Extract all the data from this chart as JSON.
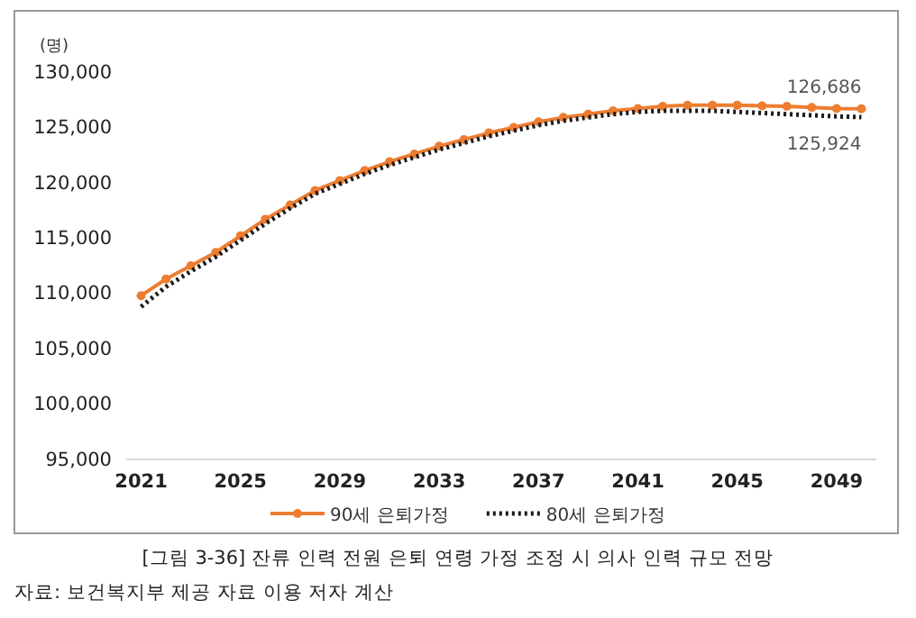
{
  "chart_data": {
    "type": "line",
    "title": "[그림 3-36] 잔류 인력 전원 은퇴 연령 가정 조정 시 의사 인력 규모 전망",
    "ylabel": "(명)",
    "annotations": [
      "자료: 보건복지부 제공 자료 이용 저자 계산"
    ],
    "x": [
      2021,
      2022,
      2023,
      2024,
      2025,
      2026,
      2027,
      2028,
      2029,
      2030,
      2031,
      2032,
      2033,
      2034,
      2035,
      2036,
      2037,
      2038,
      2039,
      2040,
      2041,
      2042,
      2043,
      2044,
      2045,
      2046,
      2047,
      2048,
      2049,
      2050
    ],
    "xlim": [
      2020.4,
      2050.6
    ],
    "xticks": [
      2021,
      2025,
      2029,
      2033,
      2037,
      2041,
      2045,
      2049
    ],
    "ylim": [
      95000,
      130000
    ],
    "yticks": [
      {
        "value": 95000,
        "label": "95,000"
      },
      {
        "value": 100000,
        "label": "100,000"
      },
      {
        "value": 105000,
        "label": "105,000"
      },
      {
        "value": 110000,
        "label": "110,000"
      },
      {
        "value": 115000,
        "label": "115,000"
      },
      {
        "value": 120000,
        "label": "120,000"
      },
      {
        "value": 125000,
        "label": "125,000"
      },
      {
        "value": 130000,
        "label": "130,000"
      }
    ],
    "legend": "bottom",
    "series": [
      {
        "name": "90세 은퇴가정",
        "color": "#ed7d31",
        "marker": "circle",
        "line_style": "solid",
        "values": [
          109800,
          111300,
          112500,
          113700,
          115200,
          116700,
          118000,
          119300,
          120200,
          121100,
          121900,
          122600,
          123300,
          123900,
          124500,
          125000,
          125500,
          125900,
          126200,
          126500,
          126700,
          126900,
          127000,
          127000,
          127000,
          126950,
          126900,
          126800,
          126700,
          126686
        ],
        "value_labels": [
          null,
          null,
          null,
          null,
          null,
          null,
          null,
          null,
          null,
          null,
          null,
          null,
          null,
          null,
          null,
          null,
          null,
          null,
          null,
          null,
          null,
          null,
          null,
          null,
          null,
          null,
          null,
          null,
          null,
          "126,686"
        ]
      },
      {
        "name": "80세 은퇴가정",
        "color": "#1a1a1a",
        "marker": "none",
        "line_style": "dotted",
        "values": [
          108800,
          110600,
          112000,
          113300,
          114800,
          116300,
          117700,
          119000,
          119900,
          120800,
          121600,
          122300,
          123000,
          123600,
          124200,
          124700,
          125200,
          125600,
          125900,
          126200,
          126400,
          126500,
          126500,
          126500,
          126400,
          126300,
          126200,
          126100,
          126000,
          125924
        ],
        "value_labels": [
          null,
          null,
          null,
          null,
          null,
          null,
          null,
          null,
          null,
          null,
          null,
          null,
          null,
          null,
          null,
          null,
          null,
          null,
          null,
          null,
          null,
          null,
          null,
          null,
          null,
          null,
          null,
          null,
          null,
          "125,924"
        ]
      }
    ]
  }
}
